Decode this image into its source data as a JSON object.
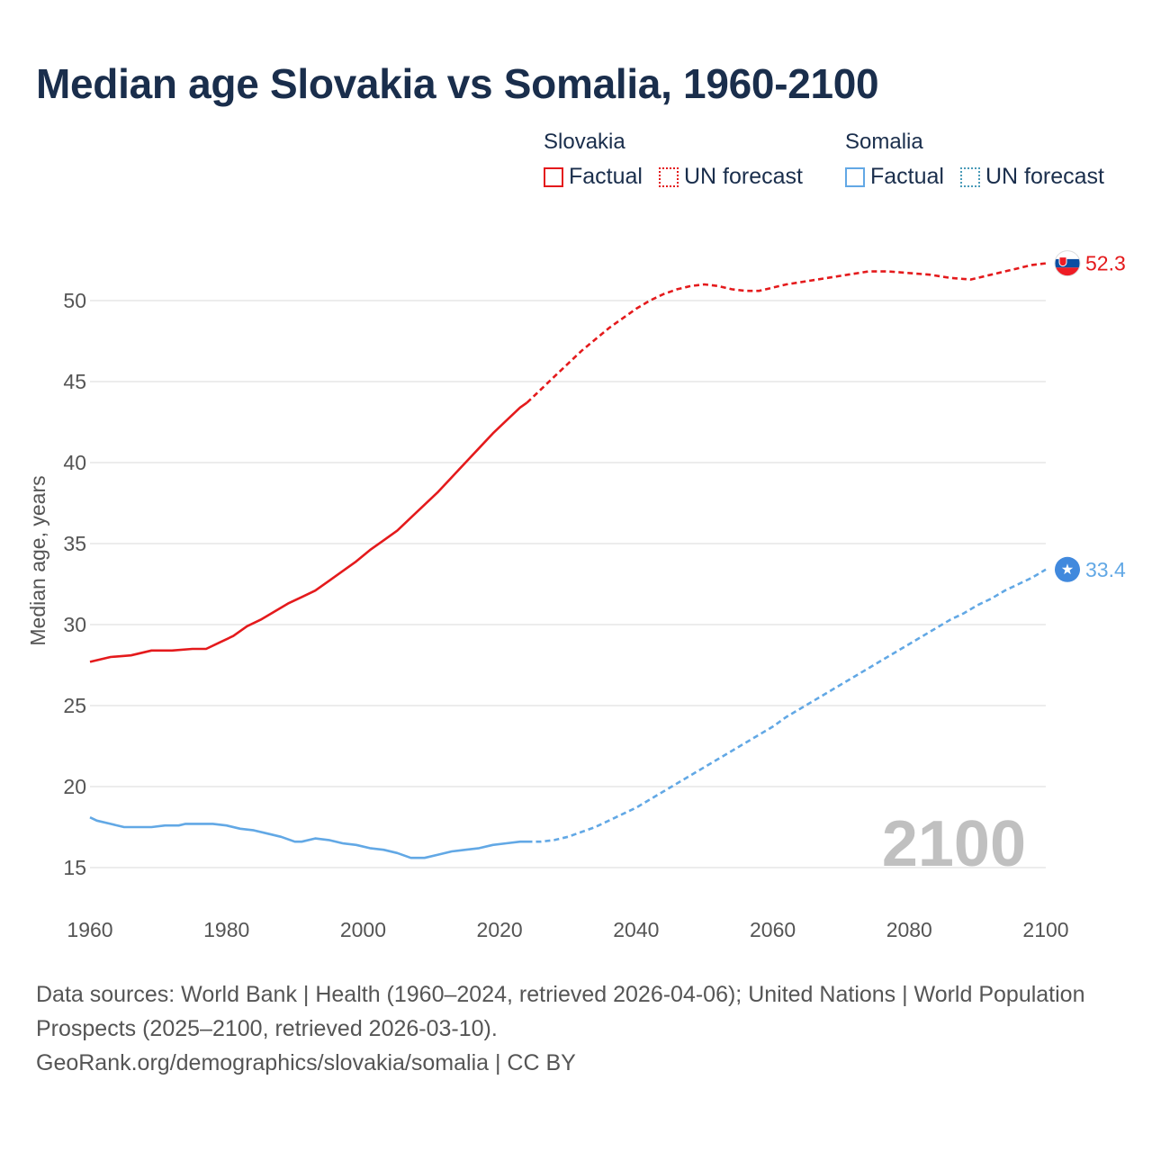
{
  "title": "Median age Slovakia vs Somalia, 1960-2100",
  "legend": {
    "slovakia": {
      "heading": "Slovakia",
      "factual": "Factual",
      "forecast": "UN forecast"
    },
    "somalia": {
      "heading": "Somalia",
      "factual": "Factual",
      "forecast": "UN forecast"
    }
  },
  "footer": {
    "sources": "Data sources: World Bank | Health (1960–2024, retrieved 2026-04-06); United Nations | World Population Prospects (2025–2100, retrieved 2026-03-10).",
    "credit": "GeoRank.org/demographics/slovakia/somalia | CC BY"
  },
  "colors": {
    "slovakia": "#e41a1c",
    "somalia": "#62a8e5",
    "grid": "#e6e6e6",
    "axis_text": "#555555",
    "year_watermark": "#c0c0c0"
  },
  "chart_data": {
    "type": "line",
    "title": "Median age Slovakia vs Somalia, 1960-2100",
    "xlabel": "",
    "ylabel": "Median age, years",
    "xlim": [
      1960,
      2100
    ],
    "ylim": [
      13,
      55
    ],
    "x_ticks": [
      1960,
      1980,
      2000,
      2020,
      2040,
      2060,
      2080,
      2100
    ],
    "y_ticks": [
      15,
      20,
      25,
      30,
      35,
      40,
      45,
      50
    ],
    "grid": true,
    "year_label": "2100",
    "factual_end_year": 2024,
    "series": [
      {
        "name": "Slovakia",
        "color": "#e41a1c",
        "end_label": "52.3",
        "factual": [
          [
            1960,
            27.7
          ],
          [
            1963,
            28.0
          ],
          [
            1966,
            28.1
          ],
          [
            1969,
            28.4
          ],
          [
            1972,
            28.4
          ],
          [
            1975,
            28.5
          ],
          [
            1977,
            28.5
          ],
          [
            1979,
            28.9
          ],
          [
            1981,
            29.3
          ],
          [
            1983,
            29.9
          ],
          [
            1985,
            30.3
          ],
          [
            1987,
            30.8
          ],
          [
            1989,
            31.3
          ],
          [
            1991,
            31.7
          ],
          [
            1993,
            32.1
          ],
          [
            1995,
            32.7
          ],
          [
            1997,
            33.3
          ],
          [
            1999,
            33.9
          ],
          [
            2001,
            34.6
          ],
          [
            2003,
            35.2
          ],
          [
            2005,
            35.8
          ],
          [
            2007,
            36.6
          ],
          [
            2009,
            37.4
          ],
          [
            2011,
            38.2
          ],
          [
            2013,
            39.1
          ],
          [
            2015,
            40.0
          ],
          [
            2017,
            40.9
          ],
          [
            2019,
            41.8
          ],
          [
            2021,
            42.6
          ],
          [
            2023,
            43.4
          ],
          [
            2024,
            43.7
          ]
        ],
        "forecast": [
          [
            2024,
            43.7
          ],
          [
            2026,
            44.5
          ],
          [
            2028,
            45.3
          ],
          [
            2030,
            46.1
          ],
          [
            2032,
            46.9
          ],
          [
            2034,
            47.6
          ],
          [
            2036,
            48.3
          ],
          [
            2038,
            48.9
          ],
          [
            2040,
            49.5
          ],
          [
            2042,
            50.0
          ],
          [
            2044,
            50.4
          ],
          [
            2046,
            50.7
          ],
          [
            2048,
            50.9
          ],
          [
            2050,
            51.0
          ],
          [
            2052,
            50.9
          ],
          [
            2054,
            50.7
          ],
          [
            2056,
            50.6
          ],
          [
            2058,
            50.6
          ],
          [
            2060,
            50.8
          ],
          [
            2062,
            51.0
          ],
          [
            2065,
            51.2
          ],
          [
            2068,
            51.4
          ],
          [
            2071,
            51.6
          ],
          [
            2074,
            51.8
          ],
          [
            2077,
            51.8
          ],
          [
            2080,
            51.7
          ],
          [
            2083,
            51.6
          ],
          [
            2086,
            51.4
          ],
          [
            2089,
            51.3
          ],
          [
            2092,
            51.6
          ],
          [
            2095,
            51.9
          ],
          [
            2098,
            52.2
          ],
          [
            2100,
            52.3
          ]
        ]
      },
      {
        "name": "Somalia",
        "color": "#62a8e5",
        "end_label": "33.4",
        "factual": [
          [
            1960,
            18.1
          ],
          [
            1961,
            17.9
          ],
          [
            1963,
            17.7
          ],
          [
            1965,
            17.5
          ],
          [
            1967,
            17.5
          ],
          [
            1969,
            17.5
          ],
          [
            1971,
            17.6
          ],
          [
            1973,
            17.6
          ],
          [
            1974,
            17.7
          ],
          [
            1976,
            17.7
          ],
          [
            1978,
            17.7
          ],
          [
            1980,
            17.6
          ],
          [
            1982,
            17.4
          ],
          [
            1984,
            17.3
          ],
          [
            1986,
            17.1
          ],
          [
            1988,
            16.9
          ],
          [
            1990,
            16.6
          ],
          [
            1991,
            16.6
          ],
          [
            1993,
            16.8
          ],
          [
            1995,
            16.7
          ],
          [
            1997,
            16.5
          ],
          [
            1999,
            16.4
          ],
          [
            2001,
            16.2
          ],
          [
            2003,
            16.1
          ],
          [
            2005,
            15.9
          ],
          [
            2007,
            15.6
          ],
          [
            2009,
            15.6
          ],
          [
            2011,
            15.8
          ],
          [
            2013,
            16.0
          ],
          [
            2015,
            16.1
          ],
          [
            2017,
            16.2
          ],
          [
            2019,
            16.4
          ],
          [
            2021,
            16.5
          ],
          [
            2023,
            16.6
          ],
          [
            2024,
            16.6
          ]
        ],
        "forecast": [
          [
            2024,
            16.6
          ],
          [
            2026,
            16.6
          ],
          [
            2028,
            16.7
          ],
          [
            2030,
            16.9
          ],
          [
            2032,
            17.2
          ],
          [
            2034,
            17.5
          ],
          [
            2036,
            17.9
          ],
          [
            2038,
            18.3
          ],
          [
            2040,
            18.7
          ],
          [
            2042,
            19.2
          ],
          [
            2044,
            19.7
          ],
          [
            2046,
            20.2
          ],
          [
            2048,
            20.7
          ],
          [
            2050,
            21.2
          ],
          [
            2052,
            21.7
          ],
          [
            2054,
            22.2
          ],
          [
            2056,
            22.7
          ],
          [
            2058,
            23.2
          ],
          [
            2060,
            23.7
          ],
          [
            2062,
            24.3
          ],
          [
            2064,
            24.8
          ],
          [
            2066,
            25.3
          ],
          [
            2068,
            25.8
          ],
          [
            2070,
            26.3
          ],
          [
            2072,
            26.8
          ],
          [
            2074,
            27.3
          ],
          [
            2076,
            27.8
          ],
          [
            2078,
            28.3
          ],
          [
            2080,
            28.8
          ],
          [
            2082,
            29.3
          ],
          [
            2084,
            29.8
          ],
          [
            2086,
            30.3
          ],
          [
            2088,
            30.7
          ],
          [
            2090,
            31.2
          ],
          [
            2092,
            31.6
          ],
          [
            2094,
            32.1
          ],
          [
            2096,
            32.5
          ],
          [
            2098,
            32.9
          ],
          [
            2100,
            33.4
          ]
        ]
      }
    ]
  }
}
